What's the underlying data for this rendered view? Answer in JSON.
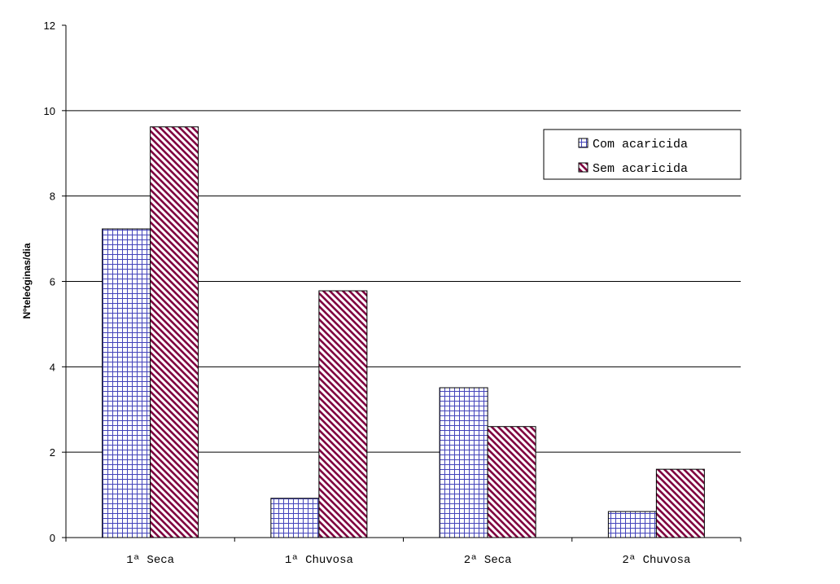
{
  "chart_data": {
    "type": "bar",
    "categories": [
      "1ª Seca",
      "1ª Chuvosa",
      "2ª Seca",
      "2ª Chuvosa"
    ],
    "series": [
      {
        "name": "Com acaricida",
        "values": [
          7.23,
          0.92,
          3.51,
          0.61
        ],
        "pattern": "grid",
        "color": "#3333aa"
      },
      {
        "name": "Sem acaricida",
        "values": [
          9.62,
          5.78,
          2.6,
          1.6
        ],
        "pattern": "diagonal",
        "color": "#800040"
      }
    ],
    "title": "",
    "xlabel": "",
    "ylabel": "Nºteleóginas/dia",
    "ylim": [
      0,
      12
    ],
    "yticks": [
      0,
      2,
      4,
      6,
      8,
      10,
      12
    ],
    "grid": true,
    "legend_position": "top-right"
  }
}
